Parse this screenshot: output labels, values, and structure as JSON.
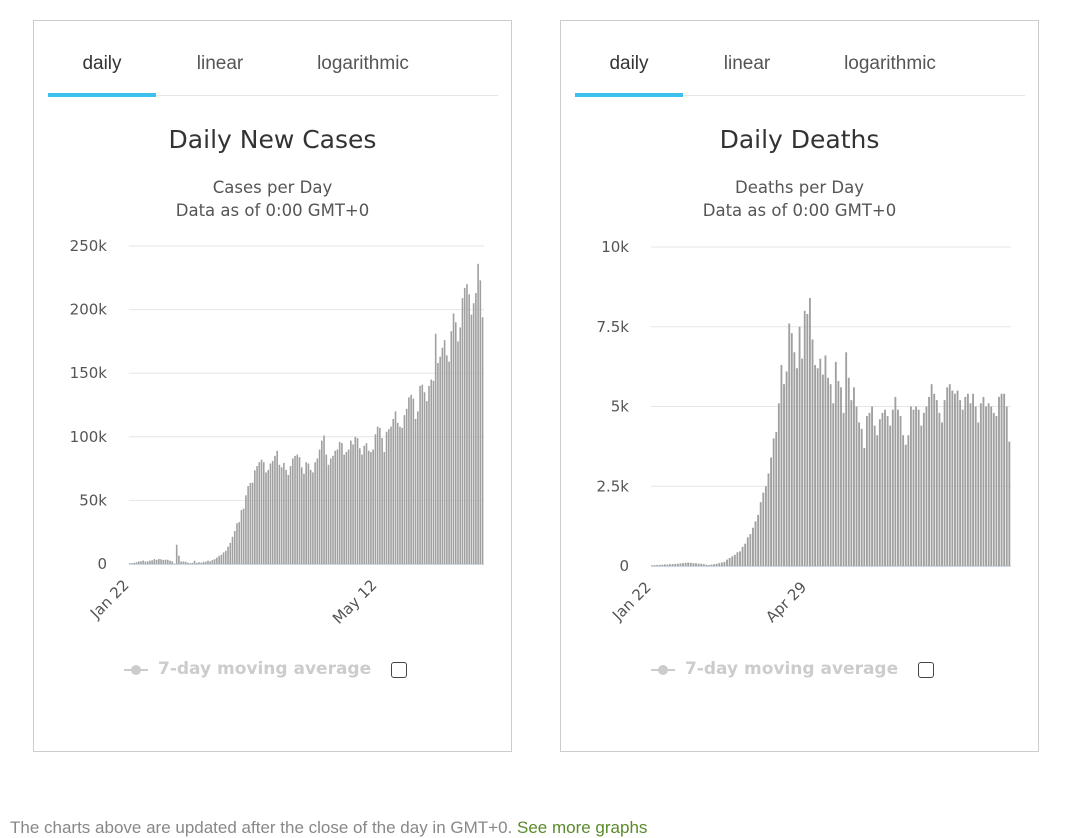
{
  "panels": [
    {
      "tabs": [
        "daily",
        "linear",
        "logarithmic"
      ],
      "active_tab": 0,
      "legend_label": "7-day moving average"
    },
    {
      "tabs": [
        "daily",
        "linear",
        "logarithmic"
      ],
      "active_tab": 0,
      "legend_label": "7-day moving average"
    }
  ],
  "footer": {
    "text": "The charts above are updated after the close of the day in GMT+0. ",
    "link": "See more graphs"
  },
  "colors": {
    "bar": "#a0a0a0",
    "tab_active": "#3ec0ec",
    "grid": "#e6e6e6",
    "link": "#5a8a2a"
  },
  "chart_data": [
    {
      "type": "bar",
      "title": "Daily New Cases",
      "subtitle": "Cases per Day",
      "subtitle2": "Data as of 0:00 GMT+0",
      "ylim": [
        0,
        250000
      ],
      "yticks": [
        0,
        50000,
        100000,
        150000,
        200000,
        250000
      ],
      "ytick_labels": [
        "0",
        "50k",
        "100k",
        "150k",
        "200k",
        "250k"
      ],
      "xtick_labels": [
        "Jan 22",
        "May 12"
      ],
      "xtick_indices": [
        0,
        111
      ],
      "values": [
        580,
        640,
        940,
        1400,
        2070,
        2100,
        2700,
        1990,
        2100,
        2600,
        2900,
        3800,
        3250,
        3900,
        3700,
        3150,
        3400,
        3350,
        2650,
        2100,
        420,
        15150,
        6500,
        2000,
        2000,
        1800,
        1000,
        600,
        900,
        2500,
        900,
        1400,
        1000,
        1800,
        1700,
        2600,
        2100,
        3100,
        3800,
        5000,
        6400,
        7300,
        9100,
        10400,
        13600,
        16600,
        21400,
        26000,
        32000,
        32900,
        42400,
        43500,
        54000,
        61300,
        63700,
        64000,
        73600,
        77000,
        80000,
        82000,
        80000,
        72000,
        74000,
        79000,
        81000,
        85000,
        89000,
        78000,
        76000,
        79500,
        74000,
        70000,
        77000,
        83000,
        85000,
        86000,
        84000,
        76000,
        71000,
        80000,
        79000,
        74000,
        72000,
        80000,
        83000,
        90000,
        97000,
        101000,
        86000,
        78000,
        83000,
        85000,
        89000,
        90000,
        96000,
        95000,
        86000,
        88000,
        90000,
        97000,
        94000,
        100000,
        99000,
        91000,
        86000,
        93000,
        95000,
        89000,
        88000,
        90000,
        102000,
        108000,
        107000,
        99000,
        88000,
        104000,
        106000,
        108000,
        114000,
        120000,
        111000,
        108000,
        107000,
        117000,
        122000,
        131000,
        133000,
        130000,
        114000,
        120000,
        140000,
        141000,
        135000,
        128000,
        140000,
        145000,
        144000,
        181000,
        158000,
        163000,
        170000,
        176000,
        164000,
        159000,
        183000,
        197000,
        190000,
        175000,
        186000,
        209000,
        217000,
        220000,
        212000,
        196000,
        205000,
        213000,
        236000,
        223000,
        194000
      ],
      "legend": [
        "7-day moving average"
      ]
    },
    {
      "type": "bar",
      "title": "Daily Deaths",
      "subtitle": "Deaths per Day",
      "subtitle2": "Data as of 0:00 GMT+0",
      "ylim": [
        0,
        10000
      ],
      "yticks": [
        0,
        2500,
        5000,
        7500,
        10000
      ],
      "ytick_labels": [
        "0",
        "2.5k",
        "5k",
        "7.5k",
        "10k"
      ],
      "xtick_labels": [
        "Jan 22",
        "Apr 29"
      ],
      "xtick_indices": [
        0,
        60
      ],
      "values": [
        20,
        25,
        30,
        35,
        40,
        50,
        45,
        55,
        60,
        65,
        70,
        80,
        90,
        100,
        110,
        100,
        90,
        85,
        75,
        70,
        60,
        40,
        30,
        45,
        55,
        70,
        90,
        110,
        130,
        200,
        250,
        300,
        350,
        430,
        460,
        600,
        700,
        900,
        1000,
        1200,
        1400,
        1600,
        2000,
        2300,
        2500,
        2900,
        3400,
        4000,
        4200,
        5100,
        6300,
        5700,
        6100,
        7600,
        7300,
        6700,
        6200,
        7500,
        6500,
        8000,
        7900,
        8400,
        7100,
        6300,
        6200,
        6500,
        6000,
        6600,
        5900,
        5700,
        5100,
        6400,
        5800,
        5600,
        4800,
        6700,
        5900,
        5200,
        5600,
        5000,
        4500,
        4300,
        3700,
        4700,
        4800,
        5000,
        4400,
        4100,
        4600,
        4800,
        4900,
        4700,
        4400,
        4900,
        5300,
        4900,
        4700,
        4100,
        3800,
        4100,
        5000,
        4900,
        5000,
        4900,
        4400,
        4800,
        5000,
        5300,
        5700,
        5400,
        5200,
        4800,
        4500,
        5200,
        5600,
        5700,
        5500,
        5400,
        5500,
        5200,
        4900,
        5300,
        5400,
        5100,
        5400,
        5000,
        4500,
        5100,
        5300,
        5000,
        5100,
        5000,
        4800,
        4700,
        5300,
        5400,
        5400,
        5000,
        3900
      ]
    }
  ]
}
